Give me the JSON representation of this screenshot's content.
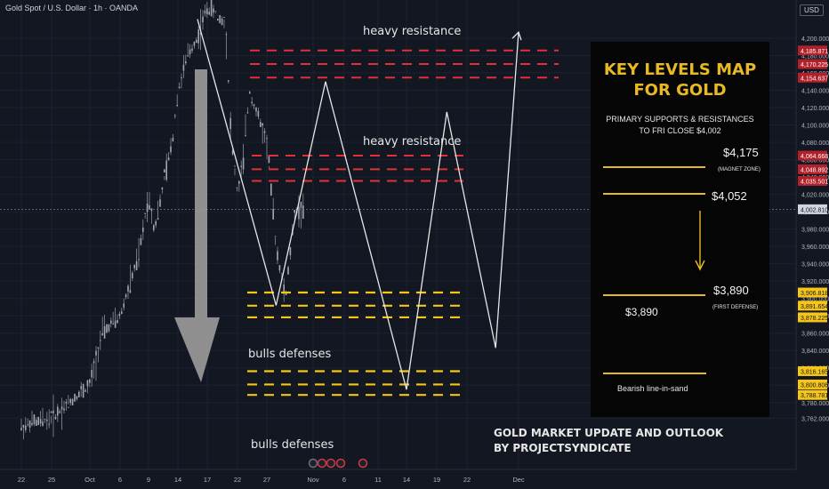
{
  "header": {
    "symbol_title": "Gold Spot / U.S. Dollar · 1h · OANDA",
    "currency": "USD"
  },
  "annotations": {
    "heavy_resistance_upper": "heavy resistance",
    "heavy_resistance_lower": "heavy resistance",
    "bulls_defenses_upper": "bulls defenses",
    "bulls_defenses_lower": "bulls defenses",
    "outlook_line1": "GOLD MARKET UPDATE AND OUTLOOK",
    "outlook_line2": "BY PROJECTSYNDICATE"
  },
  "panel": {
    "title_line1": "KEY LEVELS MAP",
    "title_line2": "FOR GOLD",
    "subtitle_line1": "PRIMARY SUPPORTS & RESISTANCES",
    "subtitle_line2": "TO FRI CLOSE $4,002",
    "level_4175": "$4,175",
    "level_4175_note": "(MAGNET ZONE)",
    "level_4052": "$4,052",
    "level_3890_right": "$3,890",
    "level_3890_left": "$3,890",
    "level_3890_note": "(FIRST DEFENSE)",
    "bearish_label": "Bearish line-in-sand",
    "accent_color": "#e8b923"
  },
  "chart_data": {
    "type": "line",
    "symbol": "Gold Spot / U.S. Dollar",
    "interval": "1h",
    "source": "OANDA",
    "ylim": [
      3752,
      4236
    ],
    "x_tick_labels": [
      "22",
      "25",
      "Oct",
      "6",
      "9",
      "14",
      "17",
      "22",
      "27",
      "Nov",
      "6",
      "11",
      "14",
      "19",
      "22",
      "Dec"
    ],
    "y_tick_labels": [
      "4,200.000",
      "4,180.000",
      "4,160.000",
      "4,140.000",
      "4,120.000",
      "4,100.000",
      "4,080.000",
      "4,060.000",
      "4,040.000",
      "4,020.000",
      "4,000.000",
      "3,980.000",
      "3,960.000",
      "3,940.000",
      "3,920.000",
      "3,900.000",
      "3,880.000",
      "3,860.000",
      "3,840.000",
      "3,820.000",
      "3,800.000",
      "3,780.000",
      "3,762.000"
    ],
    "y_tick_values": [
      4200,
      4180,
      4160,
      4140,
      4120,
      4100,
      4080,
      4060,
      4040,
      4020,
      4000,
      3980,
      3960,
      3940,
      3920,
      3900,
      3880,
      3860,
      3840,
      3820,
      3800,
      3780,
      3762
    ],
    "last_price": {
      "label": "4,002.810",
      "value": 4002.81
    },
    "resistance_levels": [
      {
        "label": "4,185.871",
        "value": 4185.871
      },
      {
        "label": "4,170.225",
        "value": 4170.225
      },
      {
        "label": "4,154.637",
        "value": 4154.637
      },
      {
        "label": "4,064.668",
        "value": 4064.668
      },
      {
        "label": "4,048.892",
        "value": 4048.892
      },
      {
        "label": "4,035.501",
        "value": 4035.501
      }
    ],
    "support_levels": [
      {
        "label": "3,906.818",
        "value": 3906.818
      },
      {
        "label": "3,891.654",
        "value": 3891.654
      },
      {
        "label": "3,878.225",
        "value": 3878.225
      },
      {
        "label": "3,816.165",
        "value": 3816.165
      },
      {
        "label": "3,800.806",
        "value": 3800.806
      },
      {
        "label": "3,788.781",
        "value": 3788.781
      }
    ],
    "price_series": {
      "x": [
        "Sep 22",
        "Sep 25",
        "Sep 29",
        "Oct 1",
        "Oct 3",
        "Oct 6",
        "Oct 8",
        "Oct 9",
        "Oct 10",
        "Oct 13",
        "Oct 14",
        "Oct 15",
        "Oct 16",
        "Oct 17",
        "Oct 20",
        "Oct 21",
        "Oct 22",
        "Oct 23",
        "Oct 24",
        "Oct 27",
        "Oct 28",
        "Oct 29",
        "Oct 30",
        "Oct 31"
      ],
      "y": [
        3752,
        3762,
        3785,
        3800,
        3860,
        3880,
        3950,
        4020,
        3980,
        4080,
        4140,
        4180,
        4200,
        4236,
        4220,
        4080,
        4020,
        4060,
        4140,
        4080,
        3960,
        3900,
        4000,
        4002
      ]
    },
    "projection_path": {
      "x": [
        "Oct 16",
        "Oct 28",
        "Nov 3",
        "Nov 14",
        "Nov 20",
        "Nov 27",
        "Dec 3"
      ],
      "y": [
        4222,
        3892,
        4150,
        3795,
        4115,
        3843,
        4207
      ]
    },
    "color_resistance": "#e0313a",
    "color_support": "#f5c518"
  }
}
